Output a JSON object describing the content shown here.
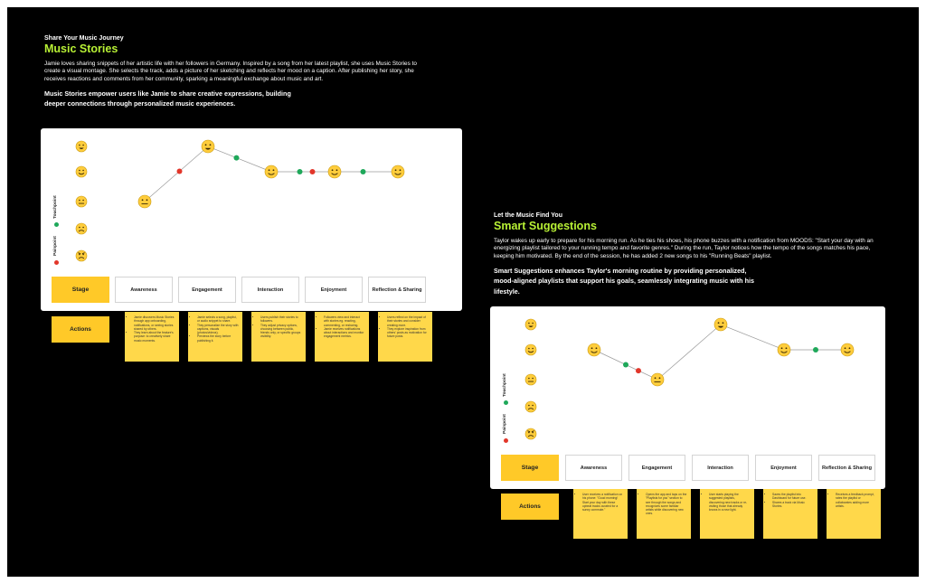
{
  "colors": {
    "board": "#000000",
    "accent_title": "#b8f135",
    "stage_yellow": "#ffc928",
    "note_yellow": "#ffd84a",
    "touch_green": "#1fa85a",
    "pain_red": "#e2362a",
    "emoji_face": "#ffcd3c"
  },
  "stories": [
    {
      "kicker": "Share Your Music Journey",
      "title": "Music Stories",
      "body": "Jamie loves sharing snippets of her artistic life with her followers in Germany. Inspired by a song from her latest playlist, she uses Music Stories to create a visual montage. She selects the track, adds a picture of her sketching and reflects her mood on a caption. After publishing her story, she receives reactions and comments from her community, sparking a meaningful exchange about music and art.",
      "emphasis": "Music Stories empower users like Jamie to share creative expressions, building deeper connections through personalized music experiences.",
      "journey": {
        "y_axis": {
          "touchpoint_label": "Touchpoint",
          "painpoint_label": "Painpoint"
        },
        "mood_scale": [
          "very-happy",
          "happy",
          "neutral",
          "sad",
          "angry"
        ],
        "stage_header": "Stage",
        "stages": [
          "Awareness",
          "Engagement",
          "Interaction",
          "Enjoyment",
          "Reflection & Sharing"
        ],
        "actions_label": "Actions",
        "mood_points": [
          {
            "stage": 0,
            "mood": "neutral"
          },
          {
            "stage": 0.55,
            "kind": "painpoint"
          },
          {
            "stage": 1,
            "mood": "very-happy"
          },
          {
            "stage": 1.45,
            "kind": "touchpoint"
          },
          {
            "stage": 2,
            "mood": "happy"
          },
          {
            "stage": 2.45,
            "kind": "touchpoint"
          },
          {
            "stage": 2.65,
            "kind": "painpoint"
          },
          {
            "stage": 3,
            "mood": "happy"
          },
          {
            "stage": 3.45,
            "kind": "touchpoint"
          },
          {
            "stage": 4,
            "mood": "happy"
          }
        ],
        "notes": [
          [
            "Jamie discovers Music Stories through app onboarding, notifications, or seeing stories shared by others.",
            "They learn about the feature's purpose: to creatively share music moments."
          ],
          [
            "Jamie selects a song, playlist, or audio snippet to share.",
            "They personalize the story with captions, visuals (photos/videos).",
            "Previews the story before publishing it."
          ],
          [
            "Users publish their stories to followers.",
            "They adjust privacy options, choosing between public, friends only, or specific groups visibility."
          ],
          [
            "Followers view and interact with stories eg. reacting, commenting, or resharing.",
            "Jamie receives notifications about interactions and monitor engagement metrics."
          ],
          [
            "Users reflect on the impact of their stories and consider creating more.",
            "They explore inspiration from others' posts as motivation for future posts."
          ]
        ]
      }
    },
    {
      "kicker": "Let the Music Find You",
      "title": "Smart Suggestions",
      "body": "Taylor wakes up early to prepare for his morning run. As he ties his shoes, his phone buzzes with a notification from MOODS: \"Start your day with an energizing playlist tailored to your running tempo and favorite genres.\" During the run, Taylor notices how the tempo of the songs matches his pace, keeping him motivated. By the end of the session, he has added 2 new songs to his \"Running Beats\" playlist.",
      "emphasis": "Smart Suggestions enhances Taylor's morning routine by providing personalized, mood-aligned playlists that support his goals, seamlessly integrating music with his lifestyle.",
      "journey": {
        "y_axis": {
          "touchpoint_label": "Touchpoint",
          "painpoint_label": "Painpoint"
        },
        "mood_scale": [
          "very-happy",
          "happy",
          "neutral",
          "sad",
          "angry"
        ],
        "stage_header": "Stage",
        "stages": [
          "Awareness",
          "Engagement",
          "Interaction",
          "Enjoyment",
          "Reflection & Sharing"
        ],
        "actions_label": "Actions",
        "mood_points": [
          {
            "stage": 0,
            "mood": "happy"
          },
          {
            "stage": 0.5,
            "kind": "touchpoint"
          },
          {
            "stage": 0.7,
            "kind": "painpoint"
          },
          {
            "stage": 1,
            "mood": "neutral"
          },
          {
            "stage": 2,
            "mood": "very-happy"
          },
          {
            "stage": 3,
            "mood": "happy"
          },
          {
            "stage": 3.5,
            "kind": "touchpoint"
          },
          {
            "stage": 4,
            "mood": "happy"
          }
        ],
        "notes": [
          [
            "User receives a notification on his phone: \"Good morning! Start your day with these upbeat tracks curated for a sunny commute.\""
          ],
          [
            "Opens the app and taps on the \"Playlists for you\" section to see through the songs and recognizes some familiar artists while discovering new ones."
          ],
          [
            "User starts playing the suggested playlists, discovering new tracks or re-visiting those that already knows in a new light."
          ],
          [
            "Saves the playlist into Dashboard for future use.",
            "Shares a track via Music Stories."
          ],
          [
            "Receives a feedback prompt, rates the playlist or collaborates adding more artists."
          ]
        ]
      }
    }
  ]
}
